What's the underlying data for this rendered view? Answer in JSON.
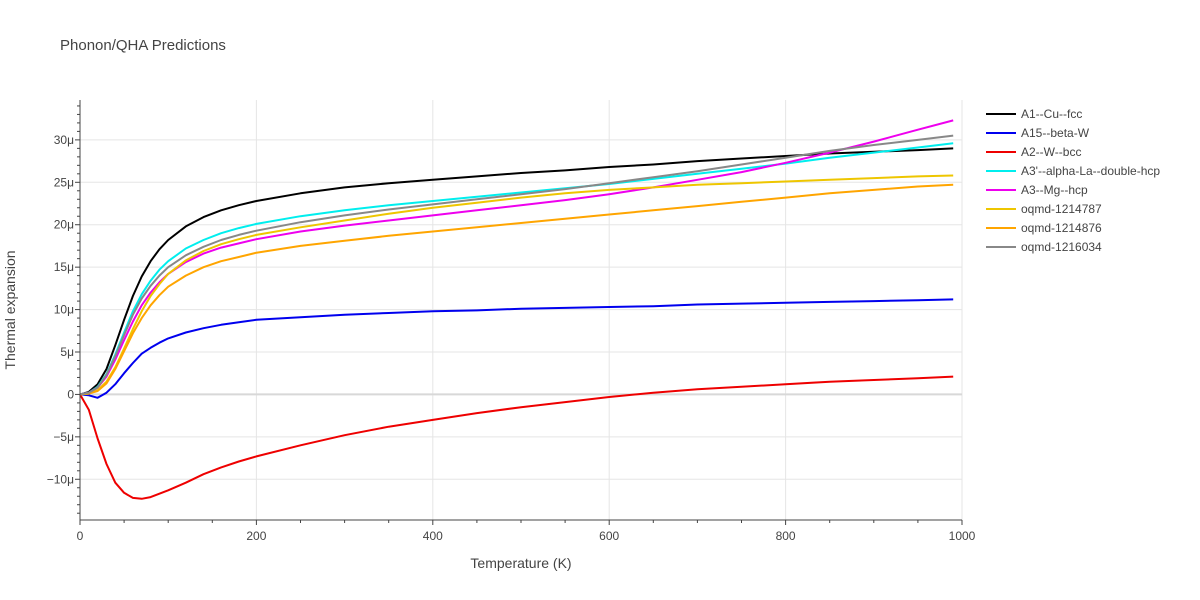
{
  "chart_data": {
    "type": "line",
    "title": "Phonon/QHA Predictions",
    "xlabel": "Temperature (K)",
    "ylabel": "Thermal expansion",
    "xlim": [
      0,
      1000
    ],
    "ylim": [
      -1.48e-05,
      3.47e-05
    ],
    "x_ticks": [
      0,
      200,
      400,
      600,
      800,
      1000
    ],
    "x_tick_labels": [
      "0",
      "200",
      "400",
      "600",
      "800",
      "1000"
    ],
    "y_ticks": [
      -1e-05,
      -5e-06,
      0,
      5e-06,
      1e-05,
      1.5e-05,
      2e-05,
      2.5e-05,
      3e-05
    ],
    "y_tick_labels": [
      "−10μ",
      "−5μ",
      "0",
      "5μ",
      "10μ",
      "15μ",
      "20μ",
      "25μ",
      "30μ"
    ],
    "grid": true,
    "legend_position": "top-right",
    "x": [
      0,
      10,
      20,
      30,
      40,
      50,
      60,
      70,
      80,
      90,
      100,
      120,
      140,
      160,
      180,
      200,
      250,
      300,
      350,
      400,
      450,
      500,
      550,
      600,
      650,
      700,
      750,
      800,
      850,
      900,
      950,
      990
    ],
    "series": [
      {
        "name": "A1--Cu--fcc",
        "color": "#000000",
        "values": [
          0,
          3e-07,
          1.2e-06,
          3e-06,
          5.8e-06,
          8.8e-06,
          1.16e-05,
          1.39e-05,
          1.57e-05,
          1.71e-05,
          1.82e-05,
          1.98e-05,
          2.09e-05,
          2.17e-05,
          2.23e-05,
          2.28e-05,
          2.37e-05,
          2.44e-05,
          2.49e-05,
          2.53e-05,
          2.57e-05,
          2.61e-05,
          2.64e-05,
          2.68e-05,
          2.71e-05,
          2.75e-05,
          2.78e-05,
          2.81e-05,
          2.84e-05,
          2.86e-05,
          2.88e-05,
          2.9e-05
        ]
      },
      {
        "name": "A15--beta-W",
        "color": "#0000ee",
        "values": [
          0,
          -1e-07,
          -4e-07,
          2e-07,
          1.2e-06,
          2.5e-06,
          3.7e-06,
          4.8e-06,
          5.5e-06,
          6.1e-06,
          6.6e-06,
          7.3e-06,
          7.8e-06,
          8.2e-06,
          8.5e-06,
          8.8e-06,
          9.1e-06,
          9.4e-06,
          9.6e-06,
          9.8e-06,
          9.9e-06,
          1.01e-05,
          1.02e-05,
          1.03e-05,
          1.04e-05,
          1.06e-05,
          1.07e-05,
          1.08e-05,
          1.09e-05,
          1.1e-05,
          1.11e-05,
          1.12e-05
        ]
      },
      {
        "name": "A2--W--bcc",
        "color": "#ee0000",
        "values": [
          0,
          -1.8e-06,
          -5.2e-06,
          -8.2e-06,
          -1.04e-05,
          -1.16e-05,
          -1.22e-05,
          -1.23e-05,
          -1.21e-05,
          -1.17e-05,
          -1.13e-05,
          -1.04e-05,
          -9.4e-06,
          -8.6e-06,
          -7.9e-06,
          -7.3e-06,
          -6e-06,
          -4.8e-06,
          -3.8e-06,
          -3e-06,
          -2.2e-06,
          -1.5e-06,
          -9e-07,
          -3e-07,
          2e-07,
          6e-07,
          9e-07,
          1.2e-06,
          1.5e-06,
          1.7e-06,
          1.9e-06,
          2.1e-06
        ]
      },
      {
        "name": "A3'--alpha-La--double-hcp",
        "color": "#00eeee",
        "values": [
          0,
          2e-07,
          9e-07,
          2.4e-06,
          4.7e-06,
          7.3e-06,
          9.8e-06,
          1.18e-05,
          1.34e-05,
          1.47e-05,
          1.57e-05,
          1.72e-05,
          1.82e-05,
          1.9e-05,
          1.96e-05,
          2.01e-05,
          2.1e-05,
          2.17e-05,
          2.23e-05,
          2.28e-05,
          2.33e-05,
          2.38e-05,
          2.43e-05,
          2.48e-05,
          2.54e-05,
          2.6e-05,
          2.66e-05,
          2.72e-05,
          2.79e-05,
          2.85e-05,
          2.91e-05,
          2.96e-05
        ]
      },
      {
        "name": "A3--Mg--hcp",
        "color": "#ee00ee",
        "values": [
          0,
          2e-07,
          8e-07,
          2.1e-06,
          4.1e-06,
          6.4e-06,
          8.6e-06,
          1.05e-05,
          1.2e-05,
          1.32e-05,
          1.42e-05,
          1.56e-05,
          1.66e-05,
          1.73e-05,
          1.78e-05,
          1.83e-05,
          1.92e-05,
          1.99e-05,
          2.05e-05,
          2.11e-05,
          2.17e-05,
          2.23e-05,
          2.29e-05,
          2.36e-05,
          2.44e-05,
          2.53e-05,
          2.62e-05,
          2.73e-05,
          2.85e-05,
          2.98e-05,
          3.12e-05,
          3.23e-05
        ]
      },
      {
        "name": "oqmd-1214787",
        "color": "#eec600",
        "values": [
          0,
          1e-07,
          5e-07,
          1.5e-06,
          3.2e-06,
          5.4e-06,
          7.7e-06,
          9.8e-06,
          1.16e-05,
          1.3e-05,
          1.42e-05,
          1.58e-05,
          1.69e-05,
          1.77e-05,
          1.83e-05,
          1.88e-05,
          1.97e-05,
          2.05e-05,
          2.13e-05,
          2.2e-05,
          2.26e-05,
          2.32e-05,
          2.37e-05,
          2.41e-05,
          2.44e-05,
          2.47e-05,
          2.49e-05,
          2.51e-05,
          2.53e-05,
          2.55e-05,
          2.57e-05,
          2.58e-05
        ]
      },
      {
        "name": "oqmd-1214876",
        "color": "#ffa500",
        "values": [
          0,
          1e-07,
          4e-07,
          1.3e-06,
          3e-06,
          5.1e-06,
          7.2e-06,
          9e-06,
          1.05e-05,
          1.17e-05,
          1.27e-05,
          1.4e-05,
          1.5e-05,
          1.57e-05,
          1.62e-05,
          1.67e-05,
          1.75e-05,
          1.81e-05,
          1.87e-05,
          1.92e-05,
          1.97e-05,
          2.02e-05,
          2.07e-05,
          2.12e-05,
          2.17e-05,
          2.22e-05,
          2.27e-05,
          2.32e-05,
          2.37e-05,
          2.41e-05,
          2.45e-05,
          2.47e-05
        ]
      },
      {
        "name": "oqmd-1216034",
        "color": "#888888",
        "values": [
          0,
          2e-07,
          8e-07,
          2.3e-06,
          4.5e-06,
          7e-06,
          9.4e-06,
          1.13e-05,
          1.28e-05,
          1.4e-05,
          1.5e-05,
          1.64e-05,
          1.74e-05,
          1.82e-05,
          1.88e-05,
          1.93e-05,
          2.03e-05,
          2.11e-05,
          2.18e-05,
          2.24e-05,
          2.3e-05,
          2.36e-05,
          2.42e-05,
          2.49e-05,
          2.56e-05,
          2.63e-05,
          2.71e-05,
          2.79e-05,
          2.87e-05,
          2.94e-05,
          3e-05,
          3.05e-05
        ]
      }
    ]
  }
}
